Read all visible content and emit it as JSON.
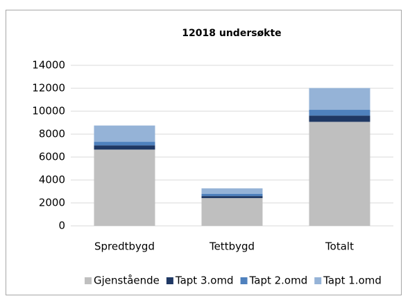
{
  "chart_data": {
    "type": "stacked_bar",
    "title": "12018 undersøkte",
    "categories": [
      "Spredtbygd",
      "Tettbygd",
      "Totalt"
    ],
    "series": [
      {
        "name": "Gjenstående",
        "color": "#bfbfbf",
        "values": [
          6650,
          2420,
          9070
        ]
      },
      {
        "name": "Tapt 3.omd",
        "color": "#1f3864",
        "values": [
          370,
          180,
          550
        ]
      },
      {
        "name": "Tapt 2.omd",
        "color": "#4f81bd",
        "values": [
          310,
          190,
          500
        ]
      },
      {
        "name": "Tapt 1.omd",
        "color": "#95b3d7",
        "values": [
          1420,
          480,
          1900
        ]
      }
    ],
    "ylim": [
      0,
      14000
    ],
    "yticks": [
      0,
      2000,
      4000,
      6000,
      8000,
      10000,
      12000,
      14000
    ],
    "grid": true,
    "legend": "bottom"
  }
}
